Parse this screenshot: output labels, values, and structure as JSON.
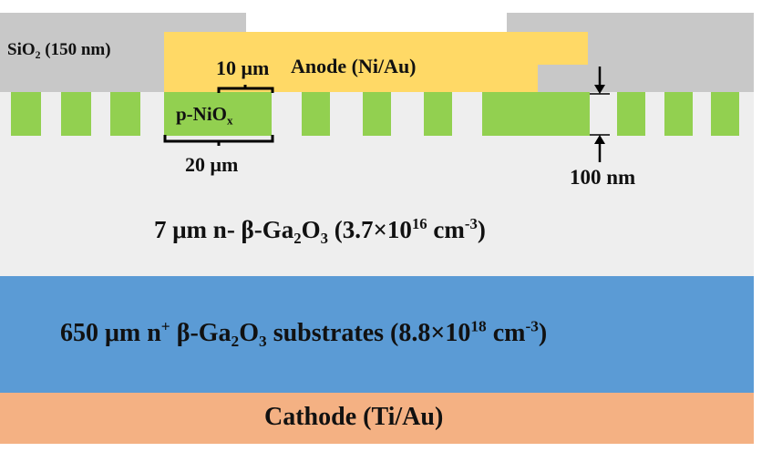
{
  "colors": {
    "drift": "#eeeeee",
    "oxide": "#c8c8c8",
    "anode": "#ffd966",
    "nio": "#92d050",
    "substrate": "#5b9bd5",
    "cathode": "#f4b183",
    "bracket": "#000000"
  },
  "labels": {
    "sio2_main": "SiO",
    "sio2_sub": "2",
    "sio2_tail": " (150 nm)",
    "anode_width": "10 μm",
    "anode": "Anode (Ni/Au)",
    "nio_main": "p-NiO",
    "nio_sub": "x",
    "pitch": "20 μm",
    "depth": "100 nm",
    "drift_pre": "7 μm n- β-Ga",
    "drift_s1": "2",
    "drift_mid": "O",
    "drift_s2": "3",
    "drift_post": " (3.7×10",
    "drift_exp": "16",
    "drift_unit": " cm",
    "drift_unit_exp": "-3",
    "drift_close": ")",
    "sub_pre": "650 μm n",
    "sub_plus": "+",
    "sub_mid": " β-Ga",
    "sub_s1": "2",
    "sub_o": "O",
    "sub_s2": "3",
    "sub_post": " substrates (8.8×10",
    "sub_exp": "18",
    "sub_unit": " cm",
    "sub_unit_exp": "-3",
    "sub_close": ")",
    "cathode": "Cathode (Ti/Au)"
  }
}
